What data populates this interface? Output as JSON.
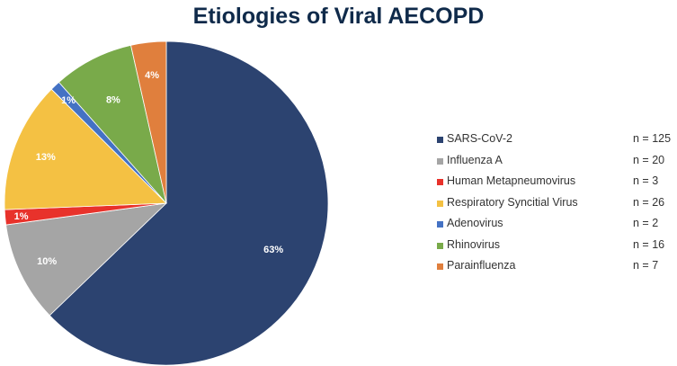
{
  "chart_data": {
    "type": "pie",
    "title": "Etiologies of Viral AECOPD",
    "legend_position": "right",
    "slices": [
      {
        "name": "SARS-CoV-2",
        "count_label": "n = 125",
        "value": 125,
        "percent_label": "63%",
        "color": "#2c4370"
      },
      {
        "name": "Influenza A",
        "count_label": "n = 20",
        "value": 20,
        "percent_label": "10%",
        "color": "#a5a5a5"
      },
      {
        "name": "Human Metapneumovirus",
        "count_label": "n = 3",
        "value": 3,
        "percent_label": "1%",
        "color": "#e8322b"
      },
      {
        "name": "Respiratory Syncitial Virus",
        "count_label": "n = 26",
        "value": 26,
        "percent_label": "13%",
        "color": "#f4c143"
      },
      {
        "name": "Adenovirus",
        "count_label": "n = 2",
        "value": 2,
        "percent_label": "1%",
        "color": "#4472c4"
      },
      {
        "name": "Rhinovirus",
        "count_label": "n = 16",
        "value": 16,
        "percent_label": "8%",
        "color": "#79aa4a"
      },
      {
        "name": "Parainfluenza",
        "count_label": "n = 7",
        "value": 7,
        "percent_label": "4%",
        "color": "#e07f3d"
      }
    ]
  }
}
